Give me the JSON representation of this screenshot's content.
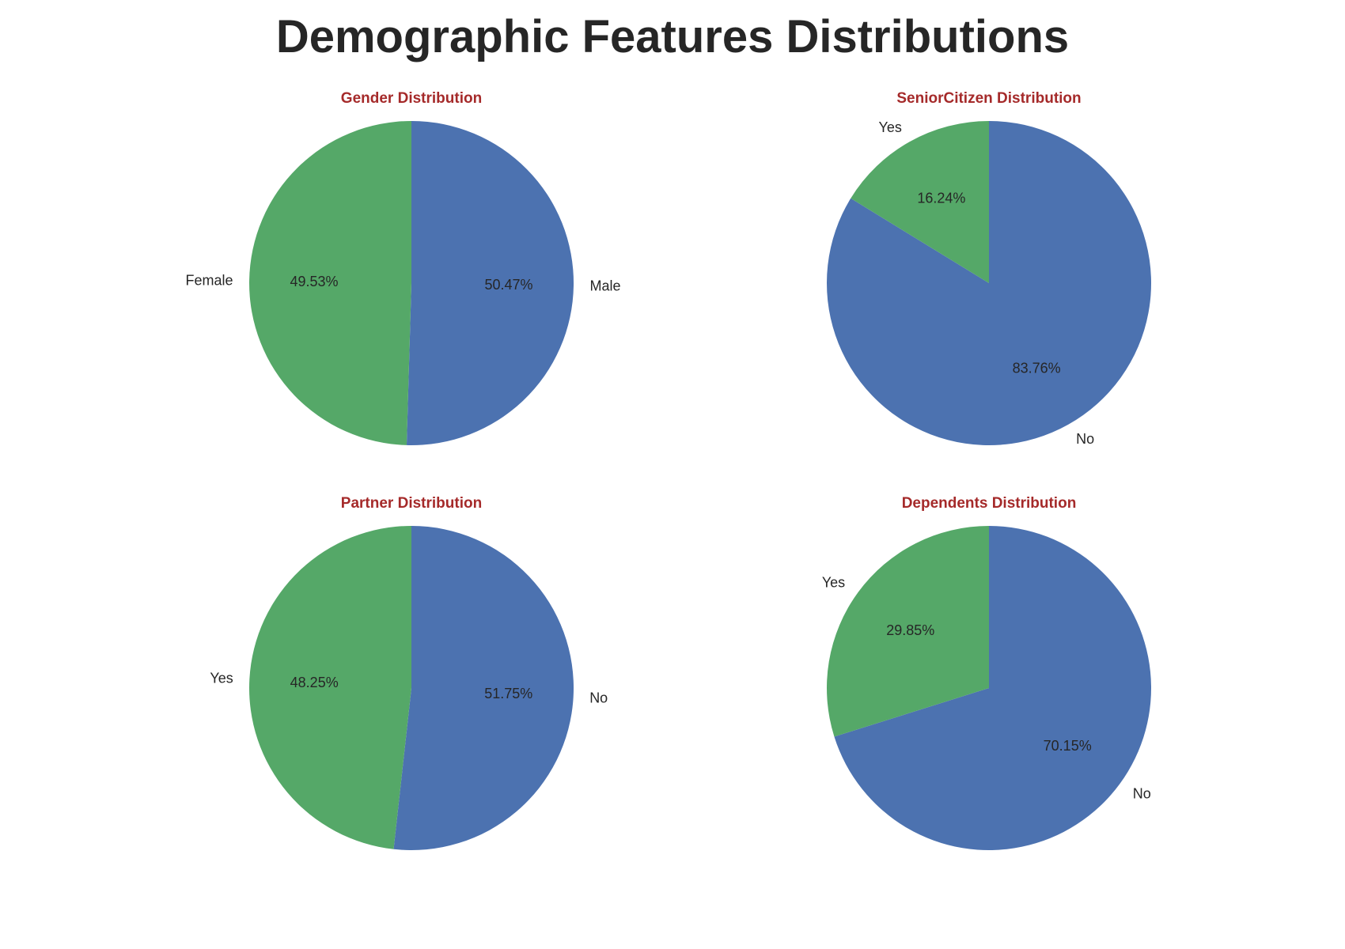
{
  "figure": {
    "title": "Demographic Features Distributions",
    "title_color": "#262626",
    "subtitle_color": "#a52a2a"
  },
  "chart_data": [
    {
      "type": "pie",
      "title": "Gender Distribution",
      "categories": [
        "Male",
        "Female"
      ],
      "values": [
        50.47,
        49.53
      ],
      "value_labels": [
        "50.47%",
        "49.53%"
      ],
      "colors": [
        "#4c72b0",
        "#55a868"
      ],
      "start_angle_deg": 90,
      "direction": "clockwise"
    },
    {
      "type": "pie",
      "title": "SeniorCitizen Distribution",
      "categories": [
        "No",
        "Yes"
      ],
      "values": [
        83.76,
        16.24
      ],
      "value_labels": [
        "83.76%",
        "16.24%"
      ],
      "colors": [
        "#4c72b0",
        "#55a868"
      ],
      "start_angle_deg": 90,
      "direction": "clockwise"
    },
    {
      "type": "pie",
      "title": "Partner Distribution",
      "categories": [
        "No",
        "Yes"
      ],
      "values": [
        51.75,
        48.25
      ],
      "value_labels": [
        "51.75%",
        "48.25%"
      ],
      "colors": [
        "#4c72b0",
        "#55a868"
      ],
      "start_angle_deg": 90,
      "direction": "clockwise"
    },
    {
      "type": "pie",
      "title": "Dependents Distribution",
      "categories": [
        "No",
        "Yes"
      ],
      "values": [
        70.15,
        29.85
      ],
      "value_labels": [
        "70.15%",
        "29.85%"
      ],
      "colors": [
        "#4c72b0",
        "#55a868"
      ],
      "start_angle_deg": 90,
      "direction": "clockwise"
    }
  ]
}
